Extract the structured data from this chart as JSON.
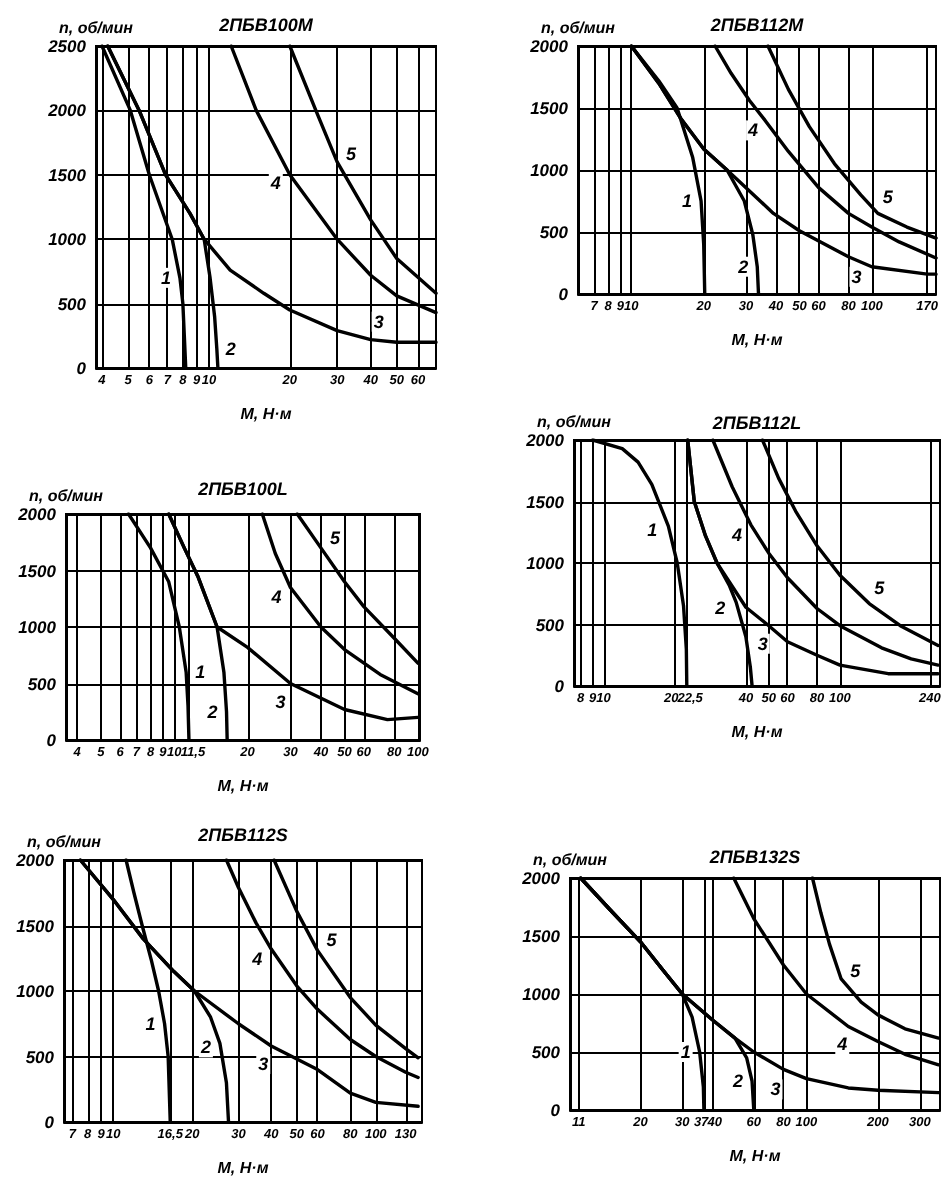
{
  "chart_data": [
    {
      "type": "line",
      "title": "2ПБВ100М",
      "xlabel": "M, Н·м",
      "ylabel": "n, об/мин",
      "log": "x",
      "xlim": [
        3.8,
        70
      ],
      "xticks": [
        4,
        5,
        6,
        7,
        8,
        9,
        10,
        20,
        30,
        40,
        50,
        60
      ],
      "ylim": [
        0,
        2500
      ],
      "yticks": [
        0,
        500,
        1000,
        1500,
        2000,
        2500
      ],
      "grid": true,
      "marker": "none",
      "line_style": "solid",
      "series": [
        {
          "name": "1",
          "color": "#000000",
          "x": [
            4,
            5.1,
            6,
            7.3,
            7.8,
            8,
            8.1,
            8.2
          ],
          "values": [
            2500,
            2000,
            1500,
            1000,
            700,
            500,
            250,
            0
          ]
        },
        {
          "name": "2",
          "color": "#000000",
          "x": [
            4.2,
            5.5,
            6.9,
            8.5,
            9.6,
            10.1,
            10.5,
            10.7,
            10.8
          ],
          "values": [
            2500,
            2000,
            1500,
            1200,
            1000,
            700,
            400,
            150,
            0
          ]
        },
        {
          "name": "3",
          "color": "#000000",
          "x": [
            4.2,
            5.5,
            6.9,
            8.5,
            9.6,
            12,
            16,
            20,
            30,
            40,
            50,
            70
          ],
          "values": [
            2500,
            2000,
            1500,
            1200,
            1000,
            760,
            580,
            450,
            290,
            220,
            200,
            200
          ]
        },
        {
          "name": "4",
          "color": "#000000",
          "x": [
            12.1,
            15,
            20,
            30,
            40,
            50,
            70
          ],
          "values": [
            2500,
            2000,
            1500,
            1000,
            720,
            560,
            430
          ]
        },
        {
          "name": "5",
          "color": "#000000",
          "x": [
            20,
            25,
            30,
            40,
            50,
            70
          ],
          "values": [
            2500,
            2000,
            1600,
            1150,
            850,
            580
          ]
        }
      ]
    },
    {
      "type": "line",
      "title": "2ПБВ112М",
      "xlabel": "M, Н·м",
      "ylabel": "n, об/мин",
      "log": "x",
      "xlim": [
        6,
        185
      ],
      "xticks": [
        7,
        8,
        9,
        10,
        20,
        30,
        40,
        50,
        60,
        80,
        100,
        170
      ],
      "ylim": [
        0,
        2000
      ],
      "yticks": [
        0,
        500,
        1000,
        1500,
        2000
      ],
      "grid": true,
      "marker": "none",
      "line_style": "solid",
      "series": [
        {
          "name": "1",
          "color": "#000000",
          "x": [
            10,
            13,
            15.5,
            18,
            19.5,
            20,
            20.2
          ],
          "values": [
            2000,
            1720,
            1500,
            1100,
            750,
            400,
            0
          ]
        },
        {
          "name": "2",
          "color": "#000000",
          "x": [
            10,
            13,
            16,
            20,
            25,
            29.5,
            32,
            33.4,
            33.8
          ],
          "values": [
            2000,
            1700,
            1420,
            1170,
            1000,
            750,
            480,
            220,
            0
          ]
        },
        {
          "name": "3",
          "color": "#000000",
          "x": [
            10,
            13,
            16,
            20,
            25,
            39,
            50,
            80,
            100,
            170,
            185
          ],
          "values": [
            2000,
            1700,
            1420,
            1170,
            1000,
            650,
            510,
            300,
            220,
            160,
            160
          ]
        },
        {
          "name": "4",
          "color": "#000000",
          "x": [
            22.3,
            26,
            31,
            36,
            45,
            60,
            80,
            100,
            130,
            185
          ],
          "values": [
            2000,
            1780,
            1560,
            1400,
            1150,
            860,
            650,
            540,
            420,
            290
          ]
        },
        {
          "name": "5",
          "color": "#000000",
          "x": [
            37,
            45,
            55,
            70,
            90,
            106,
            140,
            185
          ],
          "values": [
            2000,
            1650,
            1350,
            1050,
            800,
            650,
            540,
            450
          ]
        }
      ]
    },
    {
      "type": "line",
      "title": "2ПБВ100L",
      "xlabel": "M, Н·м",
      "ylabel": "n, об/мин",
      "log": "x",
      "xlim": [
        3.6,
        102
      ],
      "xticks": [
        4,
        5,
        6,
        7,
        8,
        9,
        10,
        {
          "value": 11.5,
          "label": "11,5"
        },
        20,
        30,
        40,
        50,
        60,
        80,
        100
      ],
      "ylim": [
        0,
        2000
      ],
      "yticks": [
        0,
        500,
        1000,
        1500,
        2000
      ],
      "grid": true,
      "marker": "none",
      "line_style": "solid",
      "series": [
        {
          "name": "1",
          "color": "#000000",
          "x": [
            6.5,
            8,
            9.5,
            10.5,
            11.2,
            11.4,
            11.5
          ],
          "values": [
            2000,
            1700,
            1400,
            1000,
            600,
            300,
            0
          ]
        },
        {
          "name": "2",
          "color": "#000000",
          "x": [
            9.5,
            11,
            12.5,
            15,
            16,
            16.4,
            16.5
          ],
          "values": [
            2000,
            1700,
            1450,
            1000,
            600,
            250,
            0
          ]
        },
        {
          "name": "3",
          "color": "#000000",
          "x": [
            9.5,
            11,
            12.5,
            15,
            20,
            30,
            50,
            75,
            100
          ],
          "values": [
            2000,
            1700,
            1450,
            1000,
            820,
            500,
            270,
            180,
            200
          ]
        },
        {
          "name": "4",
          "color": "#000000",
          "x": [
            23,
            26,
            30,
            40,
            50,
            70,
            100
          ],
          "values": [
            2000,
            1650,
            1350,
            1000,
            800,
            580,
            410
          ]
        },
        {
          "name": "5",
          "color": "#000000",
          "x": [
            32,
            40,
            50,
            60,
            80,
            100
          ],
          "values": [
            2000,
            1700,
            1400,
            1180,
            900,
            680
          ]
        }
      ]
    },
    {
      "type": "line",
      "title": "2ПБВ112L",
      "xlabel": "M, Н·м",
      "ylabel": "n, об/мин",
      "log": "x",
      "xlim": [
        7.5,
        265
      ],
      "xticks": [
        8,
        9,
        10,
        20,
        {
          "value": 22.5,
          "label": "22,5"
        },
        40,
        50,
        60,
        80,
        100,
        240
      ],
      "ylim": [
        0,
        2000
      ],
      "yticks": [
        0,
        500,
        1000,
        1500,
        2000
      ],
      "grid": true,
      "marker": "none",
      "line_style": "solid",
      "series": [
        {
          "name": "1",
          "color": "#000000",
          "x": [
            9,
            12,
            14,
            16,
            18.8,
            20.5,
            21.8,
            22.4,
            22.5
          ],
          "values": [
            2000,
            1930,
            1820,
            1640,
            1300,
            1000,
            650,
            300,
            0
          ]
        },
        {
          "name": "2",
          "color": "#000000",
          "x": [
            22.7,
            24.2,
            27,
            30.2,
            34,
            36.4,
            40,
            41.8,
            42.5
          ],
          "values": [
            2000,
            1500,
            1220,
            1000,
            820,
            680,
            400,
            150,
            0
          ]
        },
        {
          "name": "3",
          "color": "#000000",
          "x": [
            22.7,
            24.2,
            27,
            30.2,
            40,
            50,
            60,
            80,
            100,
            160,
            260
          ],
          "values": [
            2000,
            1500,
            1220,
            1000,
            640,
            490,
            360,
            250,
            170,
            100,
            100
          ]
        },
        {
          "name": "4",
          "color": "#000000",
          "x": [
            29,
            35,
            42,
            50,
            60,
            80,
            100,
            150,
            200,
            260
          ],
          "values": [
            2000,
            1620,
            1310,
            1080,
            880,
            630,
            490,
            310,
            220,
            170
          ]
        },
        {
          "name": "5",
          "color": "#000000",
          "x": [
            47,
            55,
            65,
            80,
            100,
            133,
            180,
            260
          ],
          "values": [
            2000,
            1690,
            1420,
            1140,
            900,
            670,
            490,
            330
          ]
        }
      ]
    },
    {
      "type": "line",
      "title": "2ПБВ112S",
      "xlabel": "M, Н·м",
      "ylabel": "n, об/мин",
      "log": "x",
      "xlim": [
        6.5,
        150
      ],
      "xticks": [
        7,
        8,
        9,
        10,
        {
          "value": 16.5,
          "label": "16,5"
        },
        20,
        30,
        40,
        50,
        60,
        80,
        100,
        130
      ],
      "ylim": [
        0,
        2000
      ],
      "yticks": [
        0,
        500,
        1000,
        1500,
        2000
      ],
      "grid": true,
      "marker": "none",
      "line_style": "solid",
      "series": [
        {
          "name": "1",
          "color": "#000000",
          "x": [
            11.2,
            12,
            12.9,
            14,
            14.9,
            15.7,
            16.2,
            16.5
          ],
          "values": [
            2000,
            1750,
            1500,
            1230,
            1000,
            750,
            500,
            0
          ]
        },
        {
          "name": "2",
          "color": "#000000",
          "x": [
            7.5,
            10,
            13,
            17,
            20.4,
            23.5,
            25.5,
            27,
            27.5
          ],
          "values": [
            2000,
            1700,
            1400,
            1150,
            1000,
            800,
            600,
            300,
            0
          ]
        },
        {
          "name": "3",
          "color": "#000000",
          "x": [
            7.5,
            10,
            13,
            17,
            20.4,
            30,
            40,
            60,
            80,
            100,
            145
          ],
          "values": [
            2000,
            1700,
            1400,
            1150,
            1000,
            750,
            580,
            400,
            220,
            150,
            120
          ]
        },
        {
          "name": "4",
          "color": "#000000",
          "x": [
            27,
            30,
            35,
            40,
            50,
            60,
            80,
            100,
            130,
            145
          ],
          "values": [
            2000,
            1790,
            1520,
            1320,
            1040,
            860,
            630,
            500,
            380,
            340
          ]
        },
        {
          "name": "5",
          "color": "#000000",
          "x": [
            41,
            50,
            60,
            80,
            100,
            130,
            145
          ],
          "values": [
            2000,
            1610,
            1310,
            950,
            740,
            560,
            490
          ]
        }
      ]
    },
    {
      "type": "line",
      "title": "2ПБВ132S",
      "xlabel": "M, Н·м",
      "ylabel": "n, об/мин",
      "log": "x",
      "xlim": [
        10.1,
        365
      ],
      "xticks": [
        11,
        20,
        30,
        37,
        40,
        60,
        80,
        100,
        200,
        300
      ],
      "ylim": [
        0,
        2000
      ],
      "yticks": [
        0,
        500,
        1000,
        1500,
        2000
      ],
      "grid": true,
      "marker": "none",
      "line_style": "solid",
      "series": [
        {
          "name": "1",
          "color": "#000000",
          "x": [
            11.2,
            15,
            20,
            25,
            30,
            33,
            35.5,
            36.8,
            37
          ],
          "values": [
            2000,
            1720,
            1450,
            1200,
            1000,
            800,
            500,
            200,
            0
          ]
        },
        {
          "name": "2",
          "color": "#000000",
          "x": [
            11.2,
            15,
            20,
            25,
            30,
            40,
            50,
            56,
            59,
            60
          ],
          "values": [
            2000,
            1720,
            1450,
            1200,
            1000,
            780,
            620,
            450,
            250,
            0
          ]
        },
        {
          "name": "3",
          "color": "#000000",
          "x": [
            11.2,
            15,
            20,
            25,
            30,
            40,
            50,
            60,
            80,
            100,
            150,
            200,
            360
          ],
          "values": [
            2000,
            1720,
            1450,
            1200,
            1000,
            780,
            620,
            500,
            350,
            270,
            190,
            170,
            150
          ]
        },
        {
          "name": "4",
          "color": "#000000",
          "x": [
            49.4,
            60,
            80,
            100,
            150,
            200,
            260,
            360
          ],
          "values": [
            2000,
            1650,
            1250,
            1000,
            720,
            590,
            480,
            390
          ]
        },
        {
          "name": "5",
          "color": "#000000",
          "x": [
            106,
            115,
            125,
            140,
            170,
            200,
            260,
            360
          ],
          "values": [
            2000,
            1700,
            1430,
            1130,
            930,
            820,
            700,
            620
          ]
        }
      ]
    }
  ]
}
